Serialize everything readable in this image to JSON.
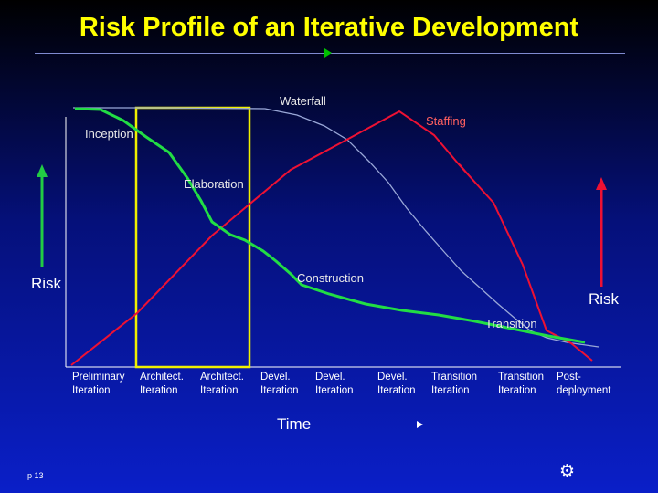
{
  "slide": {
    "title": "Risk Profile of an Iterative Development",
    "page_number": "p 13",
    "settings_icon": "gear-icon"
  },
  "labels": {
    "waterfall": "Waterfall",
    "staffing": "Staffing",
    "risk_left": "Risk",
    "risk_right": "Risk",
    "time": "Time"
  },
  "phases": {
    "inception": "Inception",
    "elaboration": "Elaboration",
    "construction": "Construction",
    "transition": "Transition"
  },
  "iterations": [
    {
      "line1": "Preliminary",
      "line2": "Iteration"
    },
    {
      "line1": "Architect.",
      "line2": "Iteration"
    },
    {
      "line1": "Architect.",
      "line2": "Iteration"
    },
    {
      "line1": "Devel.",
      "line2": "Iteration"
    },
    {
      "line1": "Devel.",
      "line2": "Iteration"
    },
    {
      "line1": "Devel.",
      "line2": "Iteration"
    },
    {
      "line1": "Transition",
      "line2": "Iteration"
    },
    {
      "line1": "Transition",
      "line2": "Iteration"
    },
    {
      "line1": "Post-",
      "line2": "deployment"
    }
  ],
  "colors": {
    "iterative_risk": "#22dd44",
    "waterfall_risk": "#9aa8d8",
    "staffing": "#ee1133",
    "highlight": "#f0f000",
    "risk_left_arrow": "#22cc44",
    "risk_right_arrow": "#ee1133"
  }
}
